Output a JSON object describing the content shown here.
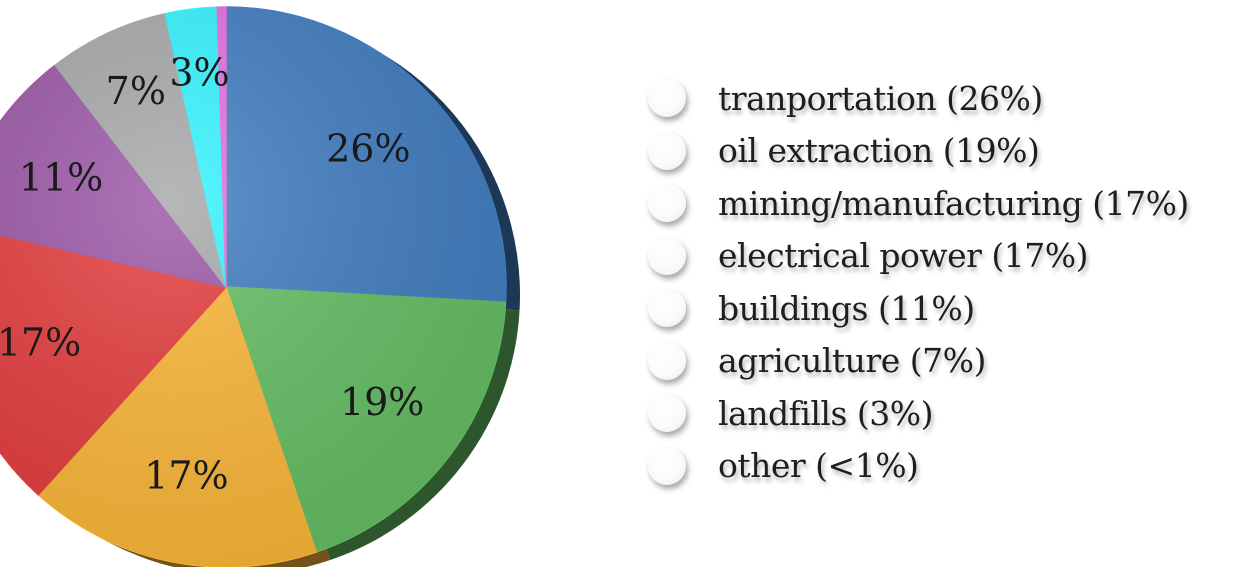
{
  "chart_data": {
    "type": "pie",
    "title": "",
    "slices": [
      {
        "label": "tranportation (26%)",
        "value": 26,
        "data_label": "26%",
        "color": "#3f7cc0"
      },
      {
        "label": "oil extraction (19%)",
        "value": 19,
        "data_label": "19%",
        "color": "#64be63"
      },
      {
        "label": "mining/manufacturing (17%)",
        "value": 17,
        "data_label": "17%",
        "color": "#fbb737"
      },
      {
        "label": "electrical power (17%)",
        "value": 17,
        "data_label": "17%",
        "color": "#e43b3c"
      },
      {
        "label": "buildings (11%)",
        "value": 11,
        "data_label": "11%",
        "color": "#9b56a6"
      },
      {
        "label": "agriculture (7%)",
        "value": 7,
        "data_label": "7%",
        "color": "#a6a8a9"
      },
      {
        "label": "landfills (3%)",
        "value": 3,
        "data_label": "3%",
        "color": "#33f4ff"
      },
      {
        "label": "other (<1%)",
        "value": 0.5,
        "data_label": "",
        "color": "#e46fe0"
      }
    ],
    "legend": "right"
  }
}
